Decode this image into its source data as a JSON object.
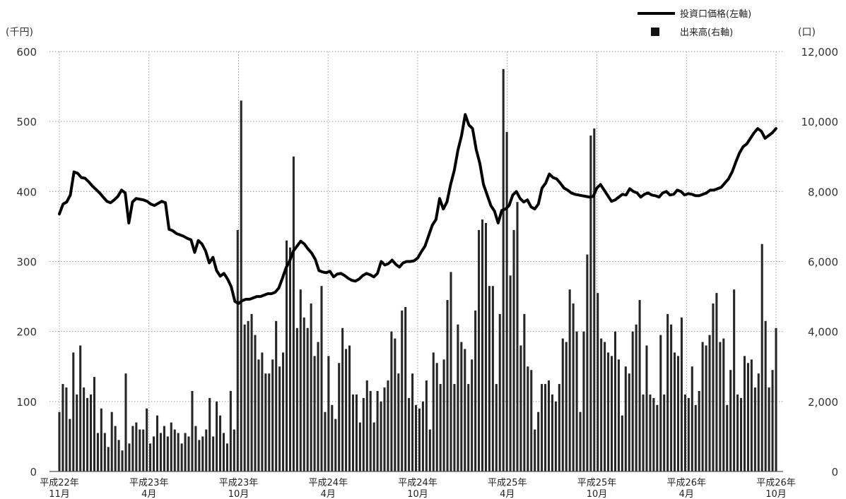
{
  "chart_data": {
    "type": "bar",
    "combo": "bar+line",
    "legend": {
      "position": "top-right",
      "line_label": "投資口価格(左軸)",
      "bar_label": "出来高(右軸)"
    },
    "y_left": {
      "unit": "(千円)",
      "min": 0,
      "max": 600,
      "ticks": [
        "0",
        "100",
        "200",
        "300",
        "400",
        "500",
        "600"
      ]
    },
    "y_right": {
      "unit": "(口)",
      "min": 0,
      "max": 12000,
      "ticks": [
        "0",
        "2,000",
        "4,000",
        "6,000",
        "8,000",
        "10,000",
        "12,000"
      ]
    },
    "grid": true,
    "x_labels": [
      {
        "line1": "平成22年",
        "line2": "11月"
      },
      {
        "line1": "平成23年",
        "line2": "4月"
      },
      {
        "line1": "平成23年",
        "line2": "10月"
      },
      {
        "line1": "平成24年",
        "line2": "4月"
      },
      {
        "line1": "平成24年",
        "line2": "10月"
      },
      {
        "line1": "平成25年",
        "line2": "4月"
      },
      {
        "line1": "平成25年",
        "line2": "10月"
      },
      {
        "line1": "平成26年",
        "line2": "4月"
      },
      {
        "line1": "平成26年",
        "line2": "10月"
      }
    ],
    "series": [
      {
        "name": "投資口価格(左軸)",
        "type": "line",
        "axis": "left",
        "values": [
          368,
          382,
          385,
          395,
          428,
          426,
          420,
          419,
          414,
          408,
          403,
          398,
          392,
          386,
          384,
          388,
          393,
          402,
          398,
          355,
          385,
          390,
          389,
          388,
          386,
          382,
          380,
          383,
          386,
          384,
          346,
          344,
          340,
          338,
          336,
          333,
          331,
          313,
          330,
          325,
          315,
          298,
          306,
          287,
          279,
          283,
          275,
          264,
          243,
          240,
          244,
          246,
          246,
          248,
          250,
          250,
          252,
          254,
          254,
          256,
          262,
          276,
          291,
          301,
          315,
          322,
          329,
          325,
          318,
          312,
          303,
          287,
          285,
          284,
          286,
          278,
          282,
          283,
          280,
          276,
          273,
          272,
          275,
          280,
          283,
          281,
          278,
          283,
          300,
          295,
          297,
          302,
          296,
          292,
          298,
          300,
          300,
          301,
          305,
          314,
          322,
          337,
          352,
          360,
          390,
          375,
          385,
          410,
          430,
          459,
          480,
          510,
          495,
          490,
          460,
          440,
          410,
          395,
          380,
          372,
          355,
          373,
          375,
          380,
          395,
          400,
          390,
          385,
          388,
          378,
          375,
          382,
          405,
          412,
          425,
          420,
          418,
          412,
          405,
          402,
          398,
          396,
          395,
          394,
          393,
          392,
          393,
          405,
          410,
          402,
          394,
          386,
          388,
          392,
          396,
          395,
          404,
          400,
          398,
          392,
          396,
          398,
          395,
          394,
          392,
          398,
          400,
          395,
          396,
          402,
          400,
          395,
          397,
          396,
          394,
          394,
          396,
          398,
          402,
          402,
          404,
          406,
          412,
          418,
          428,
          442,
          455,
          464,
          468,
          476,
          484,
          490,
          486,
          476,
          480,
          484,
          490
        ]
      },
      {
        "name": "出来高(右軸)",
        "type": "bar",
        "axis": "right",
        "values": [
          1700,
          2500,
          2400,
          1500,
          3400,
          2200,
          3600,
          2400,
          2100,
          2200,
          2700,
          1100,
          1800,
          1100,
          700,
          1700,
          1300,
          900,
          600,
          2800,
          800,
          1300,
          1400,
          1200,
          1200,
          1800,
          800,
          1000,
          1600,
          1100,
          1300,
          1000,
          1400,
          1200,
          1100,
          800,
          1100,
          1000,
          2300,
          1300,
          900,
          1000,
          1200,
          2100,
          1000,
          2000,
          1600,
          1100,
          800,
          2300,
          1200,
          6900,
          10600,
          4200,
          4300,
          4500,
          3900,
          3200,
          3400,
          2800,
          2800,
          3200,
          4300,
          3000,
          3400,
          6600,
          6400,
          9000,
          4100,
          5200,
          4400,
          4100,
          4800,
          3300,
          3700,
          5300,
          1700,
          3300,
          1900,
          1500,
          3100,
          4100,
          3500,
          3600,
          2200,
          2200,
          1400,
          2100,
          2600,
          2300,
          1400,
          2300,
          2000,
          2400,
          2600,
          4000,
          3800,
          2800,
          4600,
          4700,
          2100,
          2800,
          1900,
          1800,
          2000,
          2600,
          1200,
          3400,
          3100,
          2500,
          3200,
          4900,
          5700,
          2500,
          4200,
          3700,
          3500,
          2500,
          3200,
          4600,
          6900,
          7200,
          7100,
          5300,
          5300,
          2500,
          4500,
          11500,
          9700,
          5600,
          6900,
          7700,
          3600,
          4500,
          3000,
          2900,
          1200,
          1700,
          2500,
          2500,
          2600,
          2200,
          2000,
          2500,
          3800,
          3700,
          5200,
          4800,
          4000,
          1700,
          4000,
          6200,
          9600,
          9800,
          5100,
          3800,
          3700,
          3400,
          3300,
          4000,
          3200,
          1600,
          3000,
          2800,
          4000,
          4200,
          4900,
          2200,
          3600,
          2200,
          2100,
          1900,
          3900,
          2200,
          4500,
          4200,
          3400,
          3300,
          4400,
          2200,
          2100,
          3000,
          1900,
          2300,
          3700,
          3600,
          3900,
          4800,
          5100,
          3700,
          3800,
          1900,
          2900,
          5200,
          2200,
          2100,
          3300,
          3100,
          3200,
          2400,
          2800,
          6500,
          4300,
          2400,
          2900,
          4100
        ]
      }
    ]
  }
}
